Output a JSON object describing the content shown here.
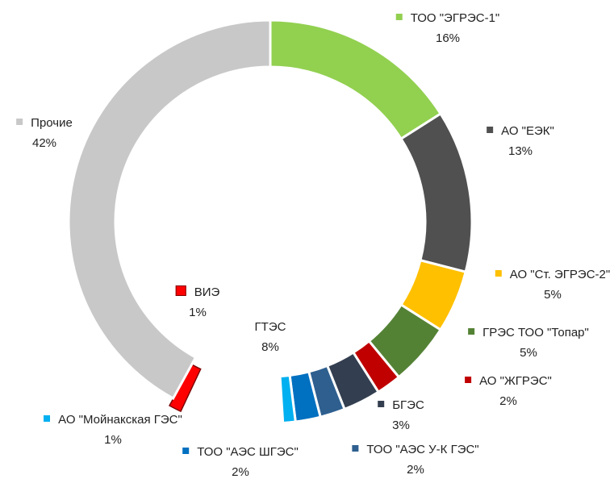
{
  "chart_data": {
    "type": "donut",
    "categories": [
      "ТОО \"ЭГРЭС-1\"",
      "АО \"ЕЭК\"",
      "АО \"Ст. ЭГРЭС-2\"",
      "ГРЭС ТОО \"Топар\"",
      "АО \"ЖГРЭС\"",
      "БГЭС",
      "ТОО \"АЭС У-К ГЭС\"",
      "ТОО \"АЭС ШГЭС\"",
      "АО \"Мойнакская ГЭС\"",
      "ГТЭС",
      "ВИЭ",
      "Прочие"
    ],
    "values": [
      16,
      13,
      5,
      5,
      2,
      3,
      2,
      2,
      1,
      8,
      1,
      42
    ],
    "value_labels": [
      "16%",
      "13%",
      "5%",
      "5%",
      "2%",
      "3%",
      "2%",
      "2%",
      "1%",
      "8%",
      "1%",
      "42%"
    ],
    "colors": [
      "#92d050",
      "#505050",
      "#ffc000",
      "#548235",
      "#c00000",
      "#333f50",
      "#2e5f8f",
      "#0070c0",
      "#00b0f0",
      null,
      "#ff0000",
      "#c8c8c8"
    ],
    "exploded": [
      "ВИЭ"
    ]
  }
}
